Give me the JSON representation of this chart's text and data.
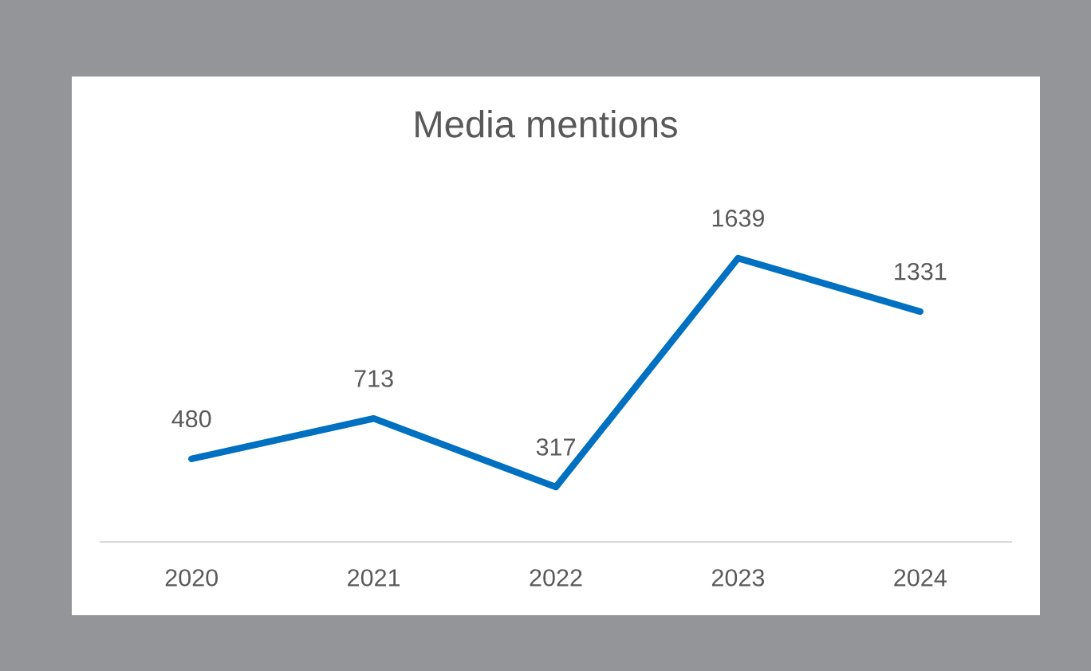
{
  "chart_data": {
    "type": "line",
    "title": "Media mentions",
    "categories": [
      "2020",
      "2021",
      "2022",
      "2023",
      "2024"
    ],
    "series": [
      {
        "color": "#0070c0",
        "values": [
          480,
          713,
          317,
          1639,
          1331
        ]
      }
    ],
    "data_labels": true,
    "grid": false,
    "legend": false,
    "marker": "none",
    "line_style": "solid",
    "tick_labels": "x"
  }
}
